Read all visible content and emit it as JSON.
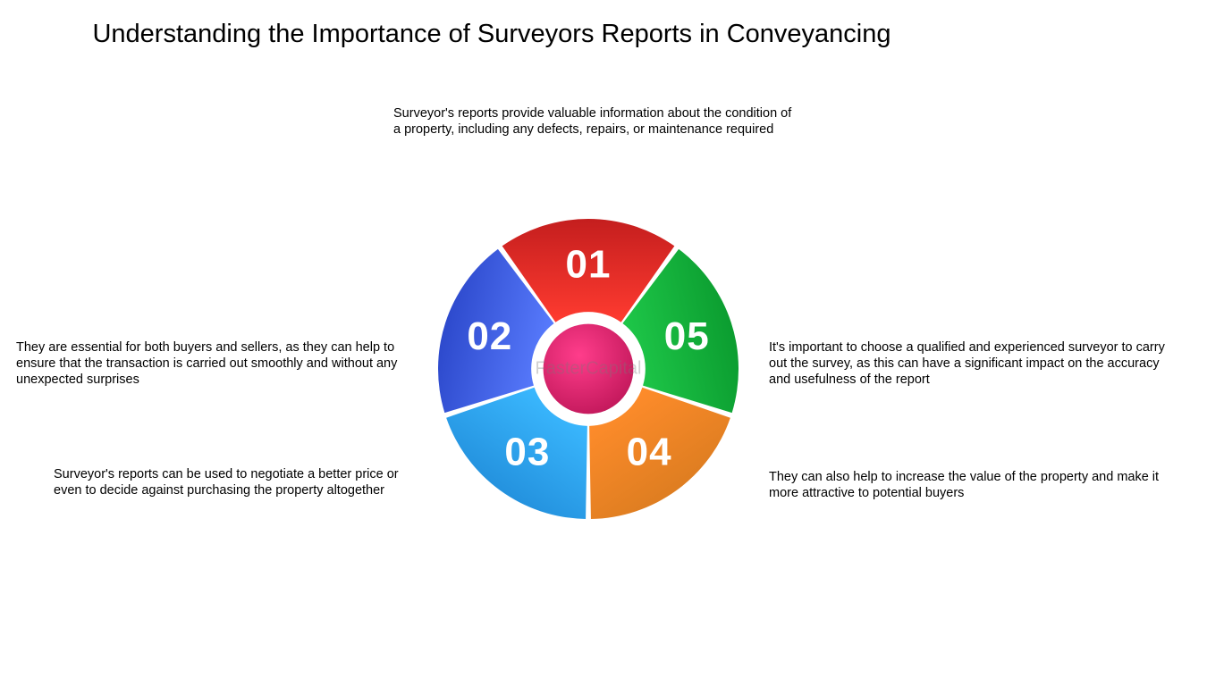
{
  "title": "Understanding the Importance of Surveyors Reports in Conveyancing",
  "watermark": "FasterCapital",
  "chart": {
    "type": "donut-segments",
    "center": {
      "gradient_from": "#ff3d8b",
      "gradient_to": "#c2185b",
      "radius_pct": 30
    },
    "inner_hole_pct": 38,
    "segments": [
      {
        "num": "01",
        "angle_start": -126,
        "angle_end": -54,
        "grad_from": "#ff3b30",
        "grad_to": "#c41e1e"
      },
      {
        "num": "02",
        "angle_start": -198,
        "angle_end": -126,
        "grad_from": "#5a7dff",
        "grad_to": "#2a46c9"
      },
      {
        "num": "03",
        "angle_start": -270,
        "angle_end": -198,
        "grad_from": "#3bb9ff",
        "grad_to": "#1e88d6"
      },
      {
        "num": "04",
        "angle_start": -342,
        "angle_end": -270,
        "grad_from": "#ff8c2b",
        "grad_to": "#d67a1e"
      },
      {
        "num": "05",
        "angle_start": -54,
        "angle_end": 18,
        "grad_from": "#1fc94a",
        "grad_to": "#0a9a2e"
      }
    ],
    "num_font_size": 44,
    "num_color": "#ffffff",
    "gap_deg": 2
  },
  "callouts": {
    "c1": "Surveyor's reports provide valuable information about the condition of a property, including any defects, repairs, or maintenance required",
    "c2": "They are essential for both buyers and sellers, as they can help to ensure that the transaction is carried out smoothly and without any unexpected surprises",
    "c3": "Surveyor's reports can be used to negotiate a better price or even to decide against purchasing the property altogether",
    "c4": "They can also help to increase the value of the property and make it more attractive to potential buyers",
    "c5": "It's important to choose a qualified and experienced surveyor to carry out the survey, as this can have a significant impact on the accuracy and usefulness of the report"
  }
}
